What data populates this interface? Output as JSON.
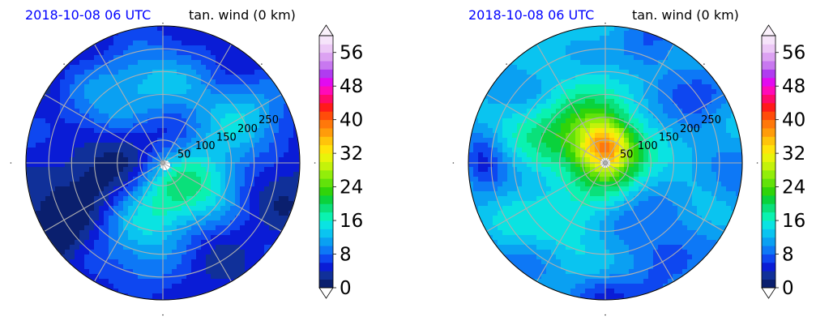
{
  "panels": [
    {
      "title_left": "2018-10-08 06 UTC",
      "title_right": "tan. wind (0 km)",
      "title_left_color": "#0000ff",
      "radial_labels": [
        "50",
        "100",
        "150",
        "200",
        "250"
      ],
      "seed": 11,
      "field": {
        "background_level": 4,
        "blobs": [
          {
            "ang": 95,
            "r": 0.55,
            "sx": 0.55,
            "sy": 0.3,
            "amp": 8
          },
          {
            "ang": 30,
            "r": 0.6,
            "sx": 0.4,
            "sy": 0.3,
            "amp": 6
          },
          {
            "ang": 300,
            "r": 0.25,
            "sx": 0.35,
            "sy": 0.35,
            "amp": 9
          },
          {
            "ang": 260,
            "r": 0.55,
            "sx": 0.3,
            "sy": 0.4,
            "amp": 6
          },
          {
            "ang": 340,
            "r": 0.45,
            "sx": 0.3,
            "sy": 0.25,
            "amp": 5
          },
          {
            "ang": 180,
            "r": 0.55,
            "sx": 0.45,
            "sy": 0.35,
            "amp": -3
          },
          {
            "ang": 215,
            "r": 0.9,
            "sx": 0.25,
            "sy": 0.25,
            "amp": -3
          },
          {
            "ang": 150,
            "r": 0.6,
            "sx": 0.35,
            "sy": 0.3,
            "amp": 3
          }
        ]
      }
    },
    {
      "title_left": "2018-10-08 06 UTC",
      "title_right": "tan. wind (0 km)",
      "title_left_color": "#0000ff",
      "radial_labels": [
        "50",
        "100",
        "150",
        "200",
        "250"
      ],
      "seed": 29,
      "field": {
        "background_level": 11,
        "blobs": [
          {
            "ang": 90,
            "r": 0.12,
            "sx": 0.2,
            "sy": 0.2,
            "amp": 20
          },
          {
            "ang": 120,
            "r": 0.2,
            "sx": 0.35,
            "sy": 0.35,
            "amp": 9
          },
          {
            "ang": 160,
            "r": 0.4,
            "sx": 0.45,
            "sy": 0.45,
            "amp": 4
          },
          {
            "ang": 230,
            "r": 0.55,
            "sx": 0.45,
            "sy": 0.35,
            "amp": 2
          },
          {
            "ang": 180,
            "r": 0.9,
            "sx": 0.15,
            "sy": 0.25,
            "amp": -6
          },
          {
            "ang": 300,
            "r": 0.8,
            "sx": 0.25,
            "sy": 0.2,
            "amp": -4
          },
          {
            "ang": 40,
            "r": 0.8,
            "sx": 0.3,
            "sy": 0.2,
            "amp": -3
          },
          {
            "ang": 270,
            "r": 0.95,
            "sx": 0.25,
            "sy": 0.15,
            "amp": -5
          }
        ]
      }
    }
  ],
  "colorbar": {
    "ticks": [
      "0",
      "8",
      "16",
      "24",
      "32",
      "40",
      "48",
      "56"
    ],
    "min": 0,
    "max": 60,
    "step": 2,
    "colors": [
      "#0a1f6e",
      "#103099",
      "#0a1cd6",
      "#0e47f0",
      "#0d78f6",
      "#0aa0f2",
      "#0ac4f0",
      "#0ae3e2",
      "#0af2b0",
      "#0ae07a",
      "#0ad23c",
      "#30d40a",
      "#62e20a",
      "#92ee0a",
      "#c4f20a",
      "#e8f40a",
      "#ffe40a",
      "#ffc40a",
      "#ff9c0a",
      "#ff780a",
      "#ff4c0a",
      "#ff1a1a",
      "#ff0a6a",
      "#ff0ab8",
      "#e20af0",
      "#b03cf0",
      "#c878f0",
      "#dca2f2",
      "#ecc8f6",
      "#f6e4fa"
    ],
    "over_color": "#fbf2fc",
    "under_color": "#ffffff"
  }
}
